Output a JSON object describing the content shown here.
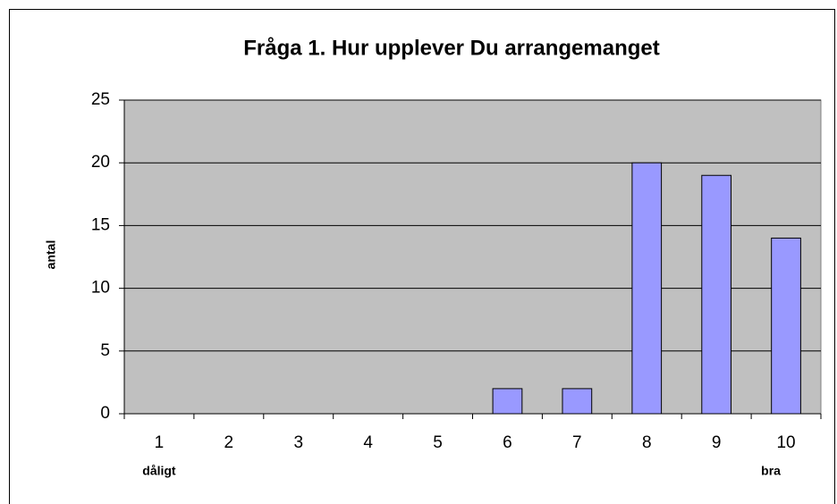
{
  "chart_data": {
    "type": "bar",
    "title": "Fråga 1. Hur upplever Du arrangemanget",
    "ylabel": "antal",
    "annotations": [
      "dåligt",
      "bra"
    ],
    "categories": [
      "1",
      "2",
      "3",
      "4",
      "5",
      "6",
      "7",
      "8",
      "9",
      "10"
    ],
    "values": [
      0,
      0,
      0,
      0,
      0,
      2,
      2,
      20,
      19,
      14
    ],
    "color": "#9999ff",
    "ylim": [
      0,
      25
    ],
    "yticks": [
      0,
      5,
      10,
      15,
      20,
      25
    ],
    "grid": true
  }
}
